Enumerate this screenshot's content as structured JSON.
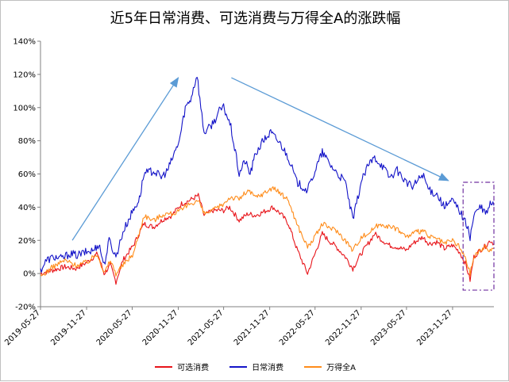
{
  "chart_data": {
    "type": "line",
    "title": "近5年日常消费、可选消费与万得全A的涨跌幅",
    "ylim": [
      -20,
      140
    ],
    "yticks": [
      -20,
      0,
      20,
      40,
      60,
      80,
      100,
      120,
      140
    ],
    "ytick_labels": [
      "-20%",
      "0%",
      "20%",
      "40%",
      "60%",
      "80%",
      "100%",
      "120%",
      "140%"
    ],
    "x_start": "2019-05-27",
    "x_end": "2024-05-10",
    "x_tick_labels": [
      "2019-05-27",
      "2019-11-27",
      "2020-05-27",
      "2020-11-27",
      "2021-05-27",
      "2021-11-27",
      "2022-05-27",
      "2022-11-27",
      "2023-05-27",
      "2023-11-27"
    ],
    "legend_position": "bottom",
    "grid": false,
    "series": [
      {
        "name": "可选消费",
        "color": "#e8141a",
        "points": [
          [
            "2019-05-27",
            0
          ],
          [
            "2019-07-15",
            2
          ],
          [
            "2019-09-01",
            4
          ],
          [
            "2019-10-15",
            3
          ],
          [
            "2019-12-01",
            7
          ],
          [
            "2020-01-10",
            12
          ],
          [
            "2020-02-05",
            0
          ],
          [
            "2020-03-01",
            5
          ],
          [
            "2020-03-23",
            -5
          ],
          [
            "2020-04-20",
            8
          ],
          [
            "2020-06-01",
            17
          ],
          [
            "2020-07-13",
            30
          ],
          [
            "2020-08-20",
            28
          ],
          [
            "2020-10-01",
            33
          ],
          [
            "2020-11-01",
            35
          ],
          [
            "2020-12-10",
            42
          ],
          [
            "2021-01-10",
            44
          ],
          [
            "2021-02-15",
            47
          ],
          [
            "2021-03-10",
            35
          ],
          [
            "2021-04-15",
            38
          ],
          [
            "2021-05-27",
            38
          ],
          [
            "2021-06-20",
            40
          ],
          [
            "2021-07-28",
            32
          ],
          [
            "2021-09-01",
            36
          ],
          [
            "2021-10-01",
            35
          ],
          [
            "2021-11-01",
            37
          ],
          [
            "2021-12-10",
            40
          ],
          [
            "2022-01-10",
            36
          ],
          [
            "2022-02-10",
            30
          ],
          [
            "2022-03-15",
            15
          ],
          [
            "2022-04-27",
            0
          ],
          [
            "2022-05-27",
            12
          ],
          [
            "2022-06-25",
            24
          ],
          [
            "2022-07-20",
            20
          ],
          [
            "2022-08-20",
            16
          ],
          [
            "2022-09-25",
            10
          ],
          [
            "2022-10-25",
            3
          ],
          [
            "2022-11-27",
            12
          ],
          [
            "2022-12-25",
            18
          ],
          [
            "2023-01-20",
            24
          ],
          [
            "2023-02-20",
            20
          ],
          [
            "2023-03-20",
            17
          ],
          [
            "2023-04-20",
            16
          ],
          [
            "2023-05-27",
            14
          ],
          [
            "2023-06-20",
            18
          ],
          [
            "2023-07-31",
            22
          ],
          [
            "2023-08-25",
            18
          ],
          [
            "2023-09-25",
            19
          ],
          [
            "2023-10-25",
            15
          ],
          [
            "2023-11-27",
            17
          ],
          [
            "2023-12-25",
            13
          ],
          [
            "2024-01-20",
            5
          ],
          [
            "2024-02-05",
            -4
          ],
          [
            "2024-02-20",
            10
          ],
          [
            "2024-03-15",
            14
          ],
          [
            "2024-04-10",
            17
          ],
          [
            "2024-04-25",
            20
          ],
          [
            "2024-05-10",
            18
          ]
        ]
      },
      {
        "name": "日常消费",
        "color": "#1414c8",
        "points": [
          [
            "2019-05-27",
            2
          ],
          [
            "2019-06-20",
            8
          ],
          [
            "2019-07-20",
            10
          ],
          [
            "2019-08-20",
            9
          ],
          [
            "2019-09-20",
            12
          ],
          [
            "2019-10-20",
            11
          ],
          [
            "2019-11-27",
            13
          ],
          [
            "2019-12-25",
            14
          ],
          [
            "2020-01-15",
            18
          ],
          [
            "2020-02-05",
            5
          ],
          [
            "2020-02-25",
            20
          ],
          [
            "2020-03-23",
            10
          ],
          [
            "2020-04-20",
            25
          ],
          [
            "2020-05-27",
            37
          ],
          [
            "2020-06-25",
            45
          ],
          [
            "2020-07-13",
            60
          ],
          [
            "2020-08-20",
            62
          ],
          [
            "2020-09-20",
            58
          ],
          [
            "2020-10-15",
            62
          ],
          [
            "2020-11-05",
            70
          ],
          [
            "2020-12-01",
            80
          ],
          [
            "2020-12-25",
            100
          ],
          [
            "2021-01-15",
            105
          ],
          [
            "2021-02-10",
            120
          ],
          [
            "2021-02-25",
            100
          ],
          [
            "2021-03-10",
            85
          ],
          [
            "2021-04-01",
            88
          ],
          [
            "2021-04-20",
            92
          ],
          [
            "2021-05-10",
            98
          ],
          [
            "2021-05-27",
            100
          ],
          [
            "2021-06-10",
            95
          ],
          [
            "2021-06-25",
            88
          ],
          [
            "2021-07-28",
            60
          ],
          [
            "2021-08-20",
            68
          ],
          [
            "2021-09-10",
            60
          ],
          [
            "2021-10-01",
            72
          ],
          [
            "2021-11-01",
            80
          ],
          [
            "2021-12-01",
            85
          ],
          [
            "2022-01-10",
            78
          ],
          [
            "2022-02-10",
            70
          ],
          [
            "2022-03-15",
            55
          ],
          [
            "2022-04-27",
            50
          ],
          [
            "2022-05-27",
            62
          ],
          [
            "2022-06-25",
            73
          ],
          [
            "2022-07-25",
            66
          ],
          [
            "2022-08-25",
            60
          ],
          [
            "2022-09-25",
            55
          ],
          [
            "2022-10-25",
            32
          ],
          [
            "2022-11-27",
            55
          ],
          [
            "2022-12-25",
            65
          ],
          [
            "2023-01-20",
            70
          ],
          [
            "2023-02-20",
            65
          ],
          [
            "2023-03-20",
            58
          ],
          [
            "2023-04-20",
            62
          ],
          [
            "2023-05-27",
            55
          ],
          [
            "2023-06-20",
            52
          ],
          [
            "2023-07-31",
            60
          ],
          [
            "2023-08-25",
            50
          ],
          [
            "2023-09-25",
            48
          ],
          [
            "2023-10-25",
            40
          ],
          [
            "2023-11-27",
            44
          ],
          [
            "2023-12-25",
            38
          ],
          [
            "2024-01-20",
            30
          ],
          [
            "2024-02-05",
            22
          ],
          [
            "2024-02-20",
            35
          ],
          [
            "2024-03-15",
            40
          ],
          [
            "2024-04-10",
            36
          ],
          [
            "2024-04-25",
            42
          ],
          [
            "2024-05-10",
            41
          ]
        ]
      },
      {
        "name": "万得全A",
        "color": "#ff8c1a",
        "points": [
          [
            "2019-05-27",
            -2
          ],
          [
            "2019-07-15",
            4
          ],
          [
            "2019-09-01",
            8
          ],
          [
            "2019-10-15",
            5
          ],
          [
            "2019-12-01",
            7
          ],
          [
            "2020-01-10",
            12
          ],
          [
            "2020-02-05",
            0
          ],
          [
            "2020-03-01",
            8
          ],
          [
            "2020-03-23",
            0
          ],
          [
            "2020-04-20",
            5
          ],
          [
            "2020-06-01",
            12
          ],
          [
            "2020-07-13",
            35
          ],
          [
            "2020-08-20",
            32
          ],
          [
            "2020-10-01",
            36
          ],
          [
            "2020-11-01",
            36
          ],
          [
            "2020-12-10",
            38
          ],
          [
            "2021-01-10",
            42
          ],
          [
            "2021-02-15",
            44
          ],
          [
            "2021-03-10",
            36
          ],
          [
            "2021-04-15",
            38
          ],
          [
            "2021-05-27",
            42
          ],
          [
            "2021-06-20",
            46
          ],
          [
            "2021-07-28",
            45
          ],
          [
            "2021-09-01",
            50
          ],
          [
            "2021-10-01",
            46
          ],
          [
            "2021-11-01",
            48
          ],
          [
            "2021-12-10",
            52
          ],
          [
            "2022-01-10",
            48
          ],
          [
            "2022-02-10",
            44
          ],
          [
            "2022-03-15",
            30
          ],
          [
            "2022-04-27",
            16
          ],
          [
            "2022-05-27",
            22
          ],
          [
            "2022-06-25",
            30
          ],
          [
            "2022-07-20",
            28
          ],
          [
            "2022-08-20",
            26
          ],
          [
            "2022-09-25",
            20
          ],
          [
            "2022-10-25",
            14
          ],
          [
            "2022-11-27",
            22
          ],
          [
            "2022-12-25",
            24
          ],
          [
            "2023-01-20",
            28
          ],
          [
            "2023-02-20",
            30
          ],
          [
            "2023-03-20",
            28
          ],
          [
            "2023-04-20",
            27
          ],
          [
            "2023-05-27",
            22
          ],
          [
            "2023-06-20",
            24
          ],
          [
            "2023-07-31",
            26
          ],
          [
            "2023-08-25",
            22
          ],
          [
            "2023-09-25",
            21
          ],
          [
            "2023-10-25",
            18
          ],
          [
            "2023-11-27",
            20
          ],
          [
            "2023-12-25",
            16
          ],
          [
            "2024-01-20",
            8
          ],
          [
            "2024-02-05",
            0
          ],
          [
            "2024-02-20",
            10
          ],
          [
            "2024-03-15",
            14
          ],
          [
            "2024-04-10",
            16
          ],
          [
            "2024-04-25",
            14
          ],
          [
            "2024-05-10",
            15
          ]
        ]
      }
    ],
    "annotations": [
      {
        "type": "arrow",
        "color": "#5b9bd5",
        "from": [
          "2019-10-01",
          20
        ],
        "to": [
          "2020-11-27",
          118
        ]
      },
      {
        "type": "arrow",
        "color": "#5b9bd5",
        "from": [
          "2021-06-27",
          118
        ],
        "to": [
          "2023-11-10",
          56
        ]
      },
      {
        "type": "dashed-box",
        "color": "#7030a0",
        "x_from": "2024-01-08",
        "x_to": "2024-05-10",
        "y_from": -10,
        "y_to": 55
      }
    ]
  }
}
